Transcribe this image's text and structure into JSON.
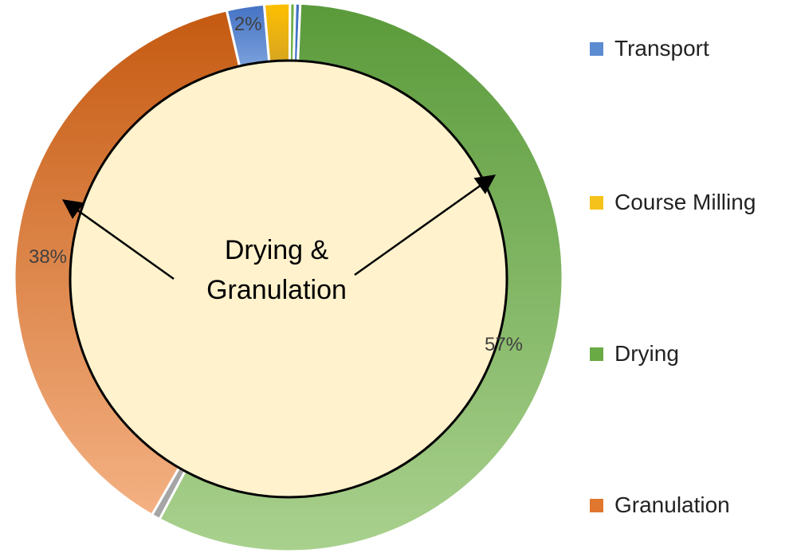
{
  "chart_data": {
    "type": "donut",
    "title": "",
    "center_label": [
      "Drying &",
      "Granulation"
    ],
    "start": "top, clockwise",
    "slices": [
      {
        "name": "",
        "value": 0.3,
        "color": "#70ad47",
        "label": ""
      },
      {
        "name": "",
        "value": 0.3,
        "color": "#4472c4",
        "label": ""
      },
      {
        "name": "Drying",
        "value": 57,
        "color": "#5a9a3a",
        "color2": "#a9d18e",
        "label": "57%"
      },
      {
        "name": "",
        "value": 0.5,
        "color": "#a5a5a5",
        "label": ""
      },
      {
        "name": "Granulation",
        "value": 38,
        "color": "#f4b183",
        "color2": "#c55a11",
        "label": "38%"
      },
      {
        "name": "Transport",
        "value": 2.2,
        "color": "#4472c4",
        "color2": "#7aa0dc",
        "label": "2%"
      },
      {
        "name": "Course Milling",
        "value": 1.5,
        "color": "#ffc000",
        "color2": "#d8a520",
        "label": ""
      }
    ],
    "legend": [
      {
        "label": "Transport",
        "color": "#5b8bd0"
      },
      {
        "label": "Course Milling",
        "color": "#f5c21b"
      },
      {
        "label": "Drying",
        "color": "#6aaa45"
      },
      {
        "label": "Granulation",
        "color": "#e0772e"
      }
    ],
    "legend_placement": "right",
    "center_fill": "#fff2cc"
  }
}
